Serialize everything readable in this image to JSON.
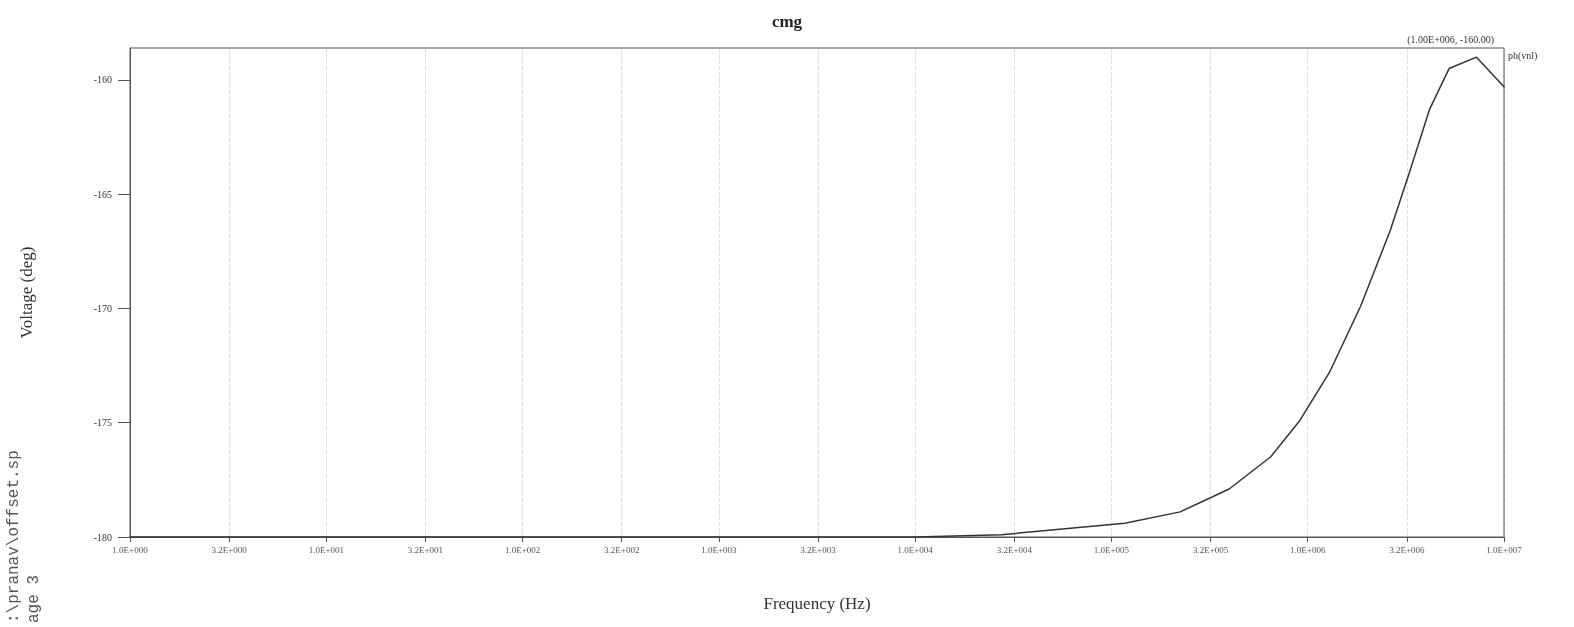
{
  "chart_data": {
    "type": "line",
    "title": "cmg",
    "xlabel": "Frequency (Hz)",
    "ylabel": "Voltage (deg)",
    "x": [
      1,
      10,
      100,
      1000,
      10000,
      27500,
      117000,
      224000,
      398000,
      646000,
      912000,
      1290000,
      1860000,
      2630000,
      3310000,
      4170000,
      5250000,
      7240000,
      10000000
    ],
    "series": [
      {
        "color": "#333333",
        "values": [
          -180,
          -180,
          -180,
          -180,
          -180,
          -179.9,
          -179.4,
          -178.9,
          -177.9,
          -176.5,
          -174.9,
          -172.8,
          -169.9,
          -166.6,
          -164.0,
          -161.3,
          -159.5,
          -159.0,
          -160.3
        ]
      }
    ],
    "log": "x",
    "xlim": [
      1,
      10000000
    ],
    "xticks": [
      {
        "value": 1,
        "label": "1.0E+000"
      },
      {
        "value": 3.2,
        "label": "3.2E+000"
      },
      {
        "value": 10,
        "label": "1.0E+001"
      },
      {
        "value": 32,
        "label": "3.2E+001"
      },
      {
        "value": 100,
        "label": "1.0E+002"
      },
      {
        "value": 320,
        "label": "3.2E+002"
      },
      {
        "value": 1000,
        "label": "1.0E+003"
      },
      {
        "value": 3200,
        "label": "3.2E+003"
      },
      {
        "value": 10000,
        "label": "1.0E+004"
      },
      {
        "value": 32000,
        "label": "3.2E+004"
      },
      {
        "value": 100000,
        "label": "1.0E+005"
      },
      {
        "value": 320000,
        "label": "3.2E+005"
      },
      {
        "value": 1000000,
        "label": "1.0E+006"
      },
      {
        "value": 3200000,
        "label": "3.2E+006"
      },
      {
        "value": 10000000,
        "label": "1.0E+007"
      }
    ],
    "ylim": [
      -180,
      -158.6
    ],
    "yticks": [
      -180,
      -175,
      -170,
      -165,
      -160
    ],
    "grid": "x",
    "marker": "none",
    "line_style": "solid",
    "annotations": [
      "(1.00E+006, -160.00)",
      "ph(vnl)",
      ":\\pranav\\offset.sp",
      "age 3"
    ]
  }
}
